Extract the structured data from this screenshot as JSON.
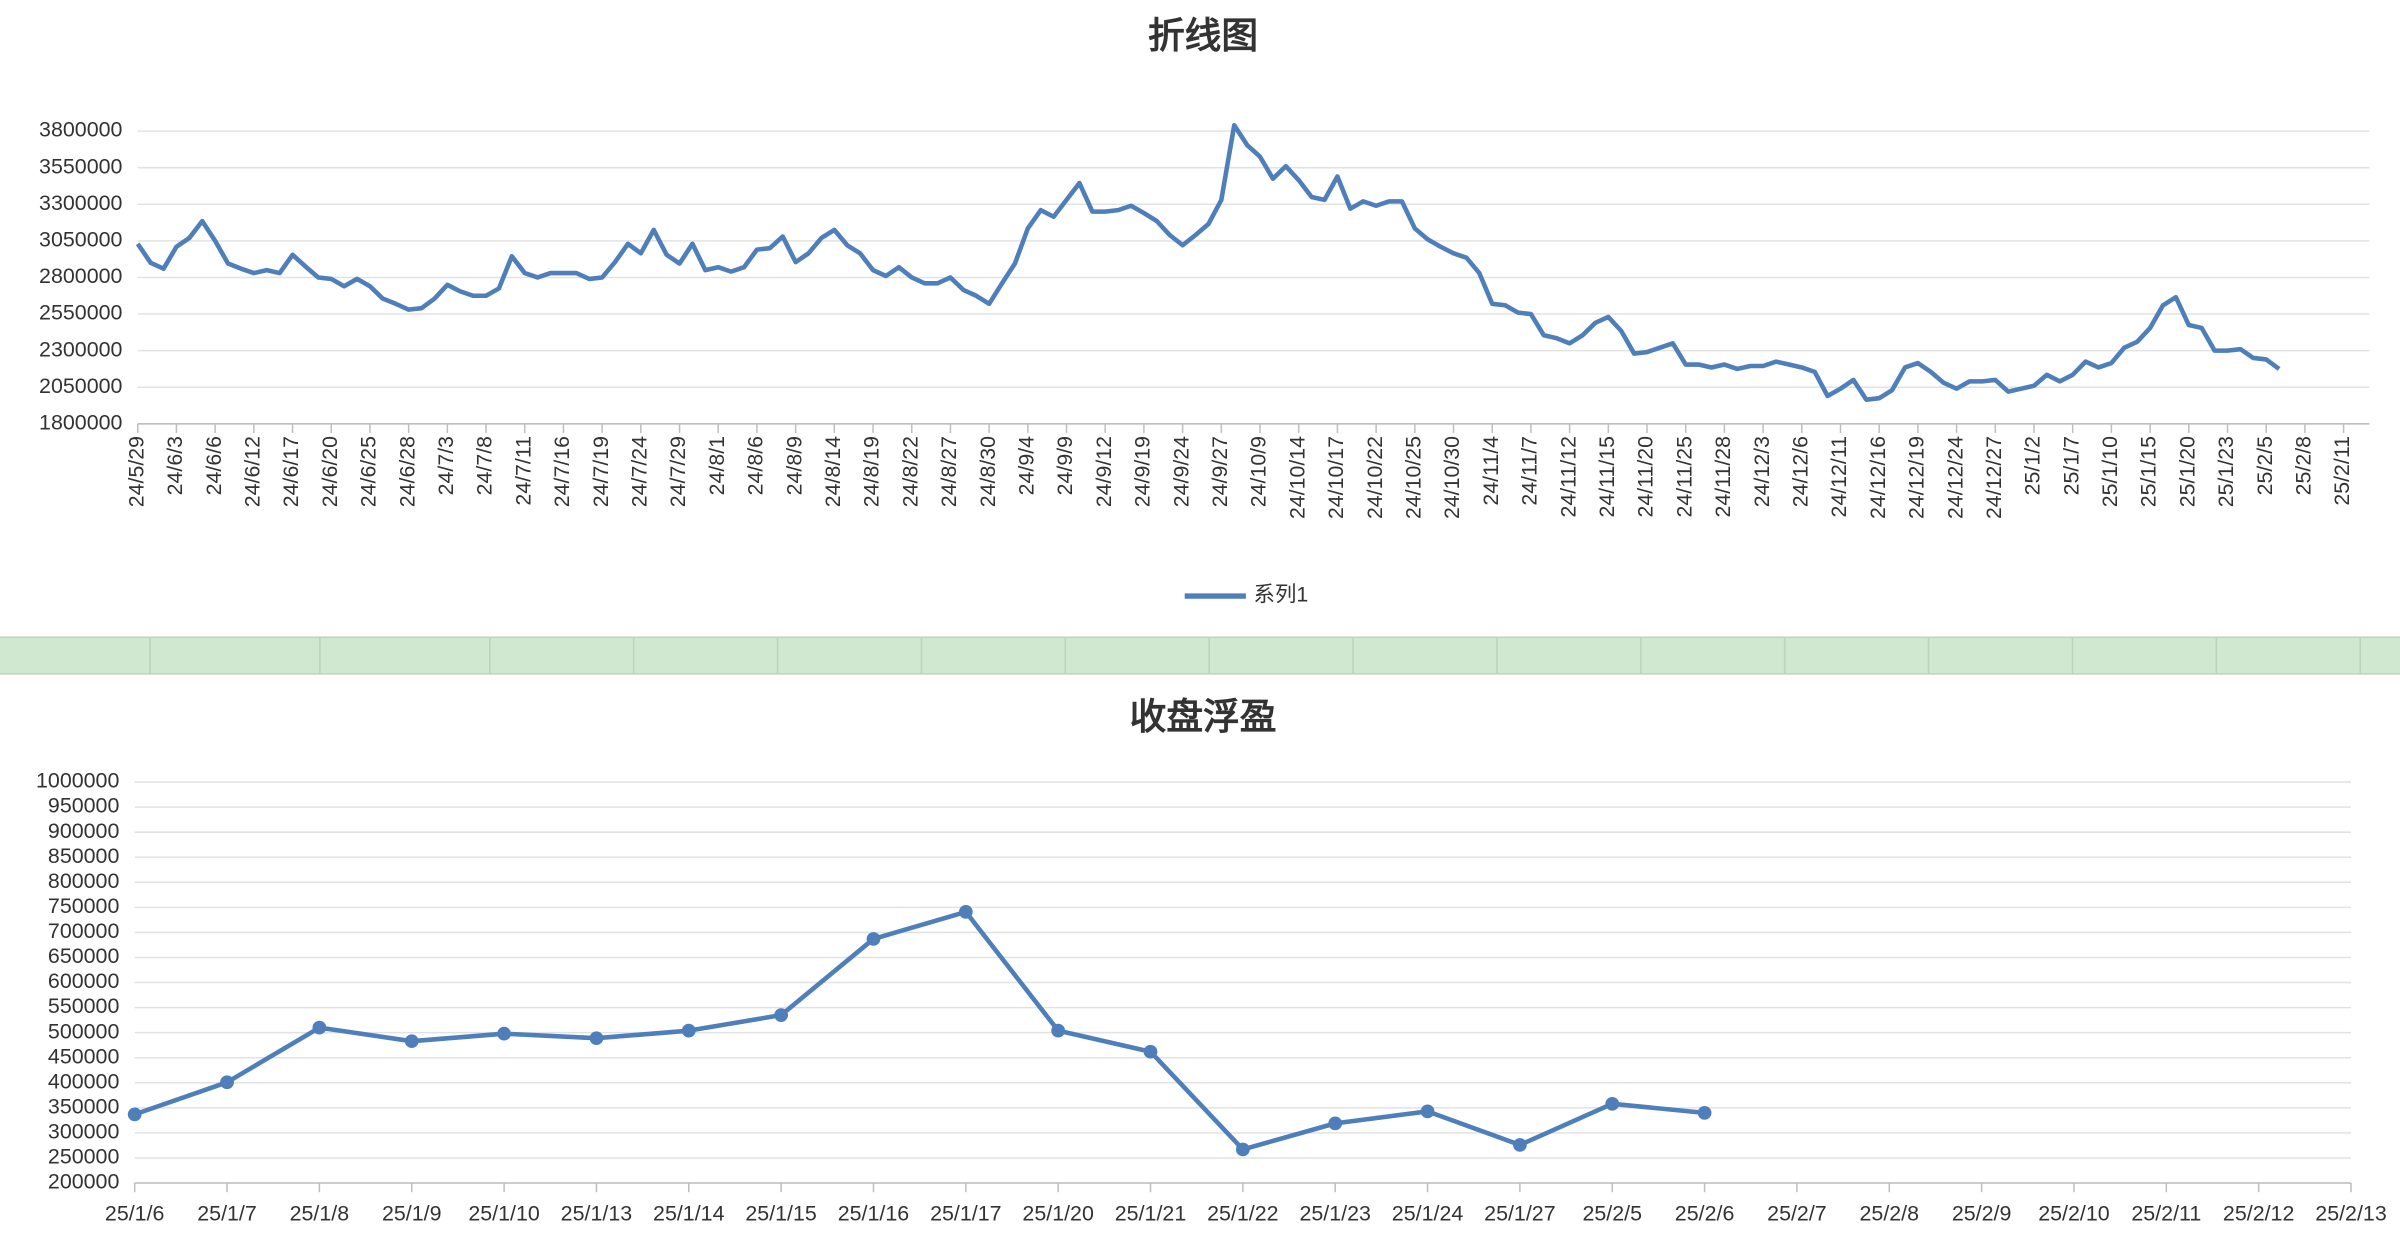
{
  "chart_data": [
    {
      "type": "line",
      "title": "折线图",
      "categories": [
        "24/5/29",
        null,
        null,
        "24/6/3",
        null,
        null,
        "24/6/6",
        null,
        null,
        "24/6/12",
        null,
        null,
        "24/6/17",
        null,
        null,
        "24/6/20",
        null,
        null,
        "24/6/25",
        null,
        null,
        "24/6/28",
        null,
        null,
        "24/7/3",
        null,
        null,
        "24/7/8",
        null,
        null,
        "24/7/11",
        null,
        null,
        "24/7/16",
        null,
        null,
        "24/7/19",
        null,
        null,
        "24/7/24",
        null,
        null,
        "24/7/29",
        null,
        null,
        "24/8/1",
        null,
        null,
        "24/8/6",
        null,
        null,
        "24/8/9",
        null,
        null,
        "24/8/14",
        null,
        null,
        "24/8/19",
        null,
        null,
        "24/8/22",
        null,
        null,
        "24/8/27",
        null,
        null,
        "24/8/30",
        null,
        null,
        "24/9/4",
        null,
        null,
        "24/9/9",
        null,
        null,
        "24/9/12",
        null,
        null,
        "24/9/19",
        null,
        null,
        "24/9/24",
        null,
        null,
        "24/9/27",
        null,
        null,
        "24/10/9",
        null,
        null,
        "24/10/14",
        null,
        null,
        "24/10/17",
        null,
        null,
        "24/10/22",
        null,
        null,
        "24/10/25",
        null,
        null,
        "24/10/30",
        null,
        null,
        "24/11/4",
        null,
        null,
        "24/11/7",
        null,
        null,
        "24/11/12",
        null,
        null,
        "24/11/15",
        null,
        null,
        "24/11/20",
        null,
        null,
        "24/11/25",
        null,
        null,
        "24/11/28",
        null,
        null,
        "24/12/3",
        null,
        null,
        "24/12/6",
        null,
        null,
        "24/12/11",
        null,
        null,
        "24/12/16",
        null,
        null,
        "24/12/19",
        null,
        null,
        "24/12/24",
        null,
        null,
        "24/12/27",
        null,
        null,
        "25/1/2",
        null,
        null,
        "25/1/7",
        null,
        null,
        "25/1/10",
        null,
        null,
        "25/1/15",
        null,
        null,
        "25/1/20",
        null,
        null,
        "25/1/23",
        null,
        null,
        "25/2/5",
        null,
        null,
        "25/2/8",
        null,
        null,
        "25/2/11",
        null,
        null
      ],
      "series": [
        {
          "name": "系列1",
          "color": "#4f7fba",
          "values": [
            3030000,
            2900000,
            2860000,
            3010000,
            3070000,
            3185000,
            3050000,
            2895000,
            2860000,
            2830000,
            2850000,
            2830000,
            2955000,
            2875000,
            2800000,
            2790000,
            2740000,
            2790000,
            2740000,
            2655000,
            2620000,
            2580000,
            2590000,
            2655000,
            2750000,
            2705000,
            2675000,
            2675000,
            2725000,
            2945000,
            2830000,
            2800000,
            2830000,
            2830000,
            2830000,
            2790000,
            2800000,
            2905000,
            3030000,
            2965000,
            3125000,
            2955000,
            2895000,
            3030000,
            2850000,
            2870000,
            2840000,
            2870000,
            2990000,
            3000000,
            3080000,
            2905000,
            2965000,
            3070000,
            3125000,
            3020000,
            2965000,
            2850000,
            2810000,
            2870000,
            2800000,
            2760000,
            2760000,
            2800000,
            2715000,
            2675000,
            2620000,
            2760000,
            2895000,
            3135000,
            3260000,
            3215000,
            3330000,
            3445000,
            3250000,
            3250000,
            3260000,
            3290000,
            3240000,
            3185000,
            3090000,
            3020000,
            3090000,
            3165000,
            3330000,
            3840000,
            3705000,
            3625000,
            3475000,
            3560000,
            3465000,
            3350000,
            3330000,
            3490000,
            3270000,
            3320000,
            3290000,
            3320000,
            3320000,
            3135000,
            3060000,
            3010000,
            2965000,
            2935000,
            2830000,
            2620000,
            2610000,
            2560000,
            2550000,
            2405000,
            2385000,
            2350000,
            2405000,
            2490000,
            2530000,
            2435000,
            2280000,
            2290000,
            2320000,
            2350000,
            2205000,
            2205000,
            2185000,
            2205000,
            2175000,
            2195000,
            2195000,
            2225000,
            2205000,
            2185000,
            2155000,
            1990000,
            2040000,
            2100000,
            1965000,
            1975000,
            2030000,
            2185000,
            2215000,
            2155000,
            2080000,
            2040000,
            2090000,
            2090000,
            2100000,
            2020000,
            2040000,
            2060000,
            2135000,
            2090000,
            2135000,
            2225000,
            2185000,
            2215000,
            2320000,
            2360000,
            2455000,
            2610000,
            2665000,
            2475000,
            2455000,
            2300000,
            2300000,
            2310000,
            2250000,
            2240000,
            2175000,
            null,
            null,
            null,
            null,
            null,
            null,
            null
          ]
        }
      ],
      "ylim": [
        1800000,
        3900000
      ],
      "yticks": [
        1800000,
        2050000,
        2300000,
        2550000,
        2800000,
        3050000,
        3300000,
        3550000,
        3800000
      ],
      "grid": true,
      "legend": "bottom"
    },
    {
      "type": "line",
      "title": "收盘浮盈",
      "categories": [
        "25/1/6",
        "25/1/7",
        "25/1/8",
        "25/1/9",
        "25/1/10",
        "25/1/13",
        "25/1/14",
        "25/1/15",
        "25/1/16",
        "25/1/17",
        "25/1/20",
        "25/1/21",
        "25/1/22",
        "25/1/23",
        "25/1/24",
        "25/1/27",
        "25/2/5",
        "25/2/6",
        "25/2/7",
        "25/2/8",
        "25/2/9",
        "25/2/10",
        "25/2/11",
        "25/2/12",
        "25/2/13"
      ],
      "values": [
        337000,
        401000,
        510000,
        483000,
        498000,
        489000,
        504000,
        535000,
        687000,
        741000,
        504000,
        462000,
        267000,
        319000,
        343000,
        276000,
        358000,
        340000,
        null,
        null,
        null,
        null,
        null,
        null,
        null
      ],
      "color": "#4f7fba",
      "markers": true,
      "ylim": [
        200000,
        1000000
      ],
      "yticks": [
        200000,
        250000,
        300000,
        350000,
        400000,
        450000,
        500000,
        550000,
        600000,
        650000,
        700000,
        750000,
        800000,
        850000,
        900000,
        950000,
        1000000
      ],
      "grid": true
    }
  ]
}
